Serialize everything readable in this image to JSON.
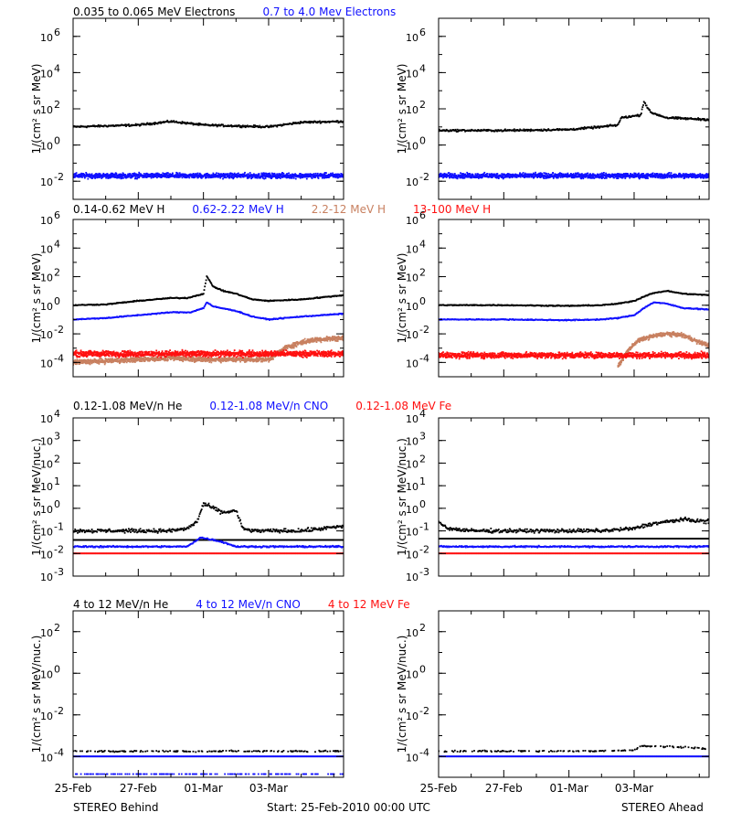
{
  "footer": {
    "left": "STEREO Behind",
    "center": "Start: 25-Feb-2010 00:00 UTC",
    "right": "STEREO Ahead"
  },
  "x_ticks": [
    "25-Feb",
    "27-Feb",
    "01-Mar",
    "03-Mar"
  ],
  "x_tick_days": [
    0,
    2,
    4,
    6
  ],
  "x_range_days": [
    0,
    8.3
  ],
  "colors": {
    "black": "#000000",
    "blue": "#1010ff",
    "tan": "#c88060",
    "red": "#ff1010"
  },
  "chart_data": [
    {
      "row": 0,
      "col": 0,
      "type": "scatter",
      "ylabel": "1/(cm² s sr MeV)",
      "yscale": "log",
      "ylim_exp": [
        -3,
        7
      ],
      "yticks": [
        {
          "label": "10",
          "exp": "-2"
        },
        {
          "label": "10",
          "exp": "0"
        },
        {
          "label": "10",
          "exp": "2"
        },
        {
          "label": "10",
          "exp": "4"
        },
        {
          "label": "10",
          "exp": "6"
        }
      ],
      "legend": [
        {
          "text": "0.035 to 0.065 MeV Electrons",
          "color": "#000000"
        },
        {
          "text": "0.7 to 4.0 Mev Electrons",
          "color": "#1010ff"
        }
      ],
      "series": [
        {
          "color": "#000000",
          "jitter": 0.08,
          "x": [
            0,
            1,
            2,
            3,
            4,
            5,
            6,
            7,
            8.3
          ],
          "logy": [
            1.0,
            1.05,
            1.1,
            1.3,
            1.1,
            1.05,
            1.0,
            1.25,
            1.3
          ]
        },
        {
          "color": "#1010ff",
          "jitter": 0.2,
          "x": [
            0,
            8.3
          ],
          "logy": [
            -1.7,
            -1.7
          ]
        }
      ]
    },
    {
      "row": 0,
      "col": 1,
      "type": "scatter",
      "ylabel": "1/(cm² s sr MeV)",
      "yscale": "log",
      "ylim_exp": [
        -3,
        7
      ],
      "yticks": [
        {
          "label": "10",
          "exp": "-2"
        },
        {
          "label": "10",
          "exp": "0"
        },
        {
          "label": "10",
          "exp": "2"
        },
        {
          "label": "10",
          "exp": "4"
        },
        {
          "label": "10",
          "exp": "6"
        }
      ],
      "legend": [],
      "series": [
        {
          "color": "#000000",
          "jitter": 0.08,
          "x": [
            0,
            2,
            4,
            5,
            5.5,
            5.6,
            6.0,
            6.2,
            6.3,
            6.5,
            7,
            8.3
          ],
          "logy": [
            0.8,
            0.8,
            0.85,
            1.0,
            1.1,
            1.5,
            1.6,
            1.65,
            2.4,
            1.8,
            1.5,
            1.4
          ]
        },
        {
          "color": "#1010ff",
          "jitter": 0.2,
          "x": [
            0,
            8.3
          ],
          "logy": [
            -1.7,
            -1.7
          ]
        }
      ]
    },
    {
      "row": 1,
      "col": 0,
      "type": "scatter",
      "ylabel": "1/(cm² s sr MeV)",
      "yscale": "log",
      "ylim_exp": [
        -5,
        6
      ],
      "yticks": [
        {
          "label": "10",
          "exp": "-4"
        },
        {
          "label": "10",
          "exp": "-2"
        },
        {
          "label": "10",
          "exp": "0"
        },
        {
          "label": "10",
          "exp": "2"
        },
        {
          "label": "10",
          "exp": "4"
        },
        {
          "label": "10",
          "exp": "6"
        }
      ],
      "legend": [
        {
          "text": "0.14-0.62 MeV H",
          "color": "#000000"
        },
        {
          "text": "0.62-2.22 MeV H",
          "color": "#1010ff"
        },
        {
          "text": "2.2-12 MeV H",
          "color": "#c88060"
        },
        {
          "text": "13-100 MeV H",
          "color": "#ff1010"
        }
      ],
      "series": [
        {
          "color": "#000000",
          "jitter": 0.05,
          "x": [
            0,
            1,
            2,
            3,
            3.5,
            4.0,
            4.1,
            4.3,
            4.6,
            5,
            5.5,
            6,
            7,
            8.3
          ],
          "logy": [
            0.0,
            0.05,
            0.3,
            0.5,
            0.5,
            0.8,
            2.0,
            1.3,
            1.0,
            0.8,
            0.4,
            0.3,
            0.4,
            0.7
          ]
        },
        {
          "color": "#1010ff",
          "jitter": 0.05,
          "x": [
            0,
            1,
            2,
            3,
            3.6,
            4.0,
            4.1,
            4.3,
            5,
            5.5,
            6,
            7,
            8.3
          ],
          "logy": [
            -1.0,
            -0.9,
            -0.7,
            -0.5,
            -0.5,
            -0.2,
            0.2,
            -0.1,
            -0.4,
            -0.8,
            -1.0,
            -0.8,
            -0.6
          ]
        },
        {
          "color": "#c88060",
          "jitter": 0.25,
          "x": [
            0,
            2,
            3,
            4,
            5,
            5.5,
            6,
            6.5,
            7,
            7.5,
            8.3
          ],
          "logy": [
            -4.0,
            -3.8,
            -3.7,
            -3.8,
            -3.8,
            -3.8,
            -3.8,
            -3.0,
            -2.6,
            -2.4,
            -2.3
          ]
        },
        {
          "color": "#ff1010",
          "jitter": 0.3,
          "x": [
            0,
            8.3
          ],
          "logy": [
            -3.4,
            -3.4
          ]
        }
      ]
    },
    {
      "row": 1,
      "col": 1,
      "type": "scatter",
      "ylabel": "1/(cm² s sr MeV)",
      "yscale": "log",
      "ylim_exp": [
        -5,
        6
      ],
      "yticks": [
        {
          "label": "10",
          "exp": "-4"
        },
        {
          "label": "10",
          "exp": "-2"
        },
        {
          "label": "10",
          "exp": "0"
        },
        {
          "label": "10",
          "exp": "2"
        },
        {
          "label": "10",
          "exp": "4"
        },
        {
          "label": "10",
          "exp": "6"
        }
      ],
      "legend": [],
      "series": [
        {
          "color": "#000000",
          "jitter": 0.05,
          "x": [
            0,
            2,
            4,
            5,
            5.5,
            6,
            6.5,
            7,
            7.5,
            8.3
          ],
          "logy": [
            0.0,
            0.0,
            -0.05,
            0.0,
            0.1,
            0.3,
            0.8,
            1.0,
            0.8,
            0.7
          ]
        },
        {
          "color": "#1010ff",
          "jitter": 0.05,
          "x": [
            0,
            2,
            4,
            5,
            5.5,
            6,
            6.3,
            6.6,
            7,
            7.5,
            8.3
          ],
          "logy": [
            -1.0,
            -1.0,
            -1.05,
            -1.0,
            -0.9,
            -0.7,
            -0.2,
            0.2,
            0.1,
            -0.2,
            -0.3
          ]
        },
        {
          "color": "#c88060",
          "jitter": 0.2,
          "x": [
            5.5,
            5.8,
            6.1,
            6.5,
            7.0,
            7.5,
            8.0,
            8.3
          ],
          "logy": [
            -4.3,
            -3.2,
            -2.5,
            -2.2,
            -2.0,
            -2.1,
            -2.6,
            -2.8
          ]
        },
        {
          "color": "#ff1010",
          "jitter": 0.3,
          "x": [
            0,
            8.3
          ],
          "logy": [
            -3.5,
            -3.5
          ]
        }
      ]
    },
    {
      "row": 2,
      "col": 0,
      "type": "scatter",
      "ylabel": "1/(cm² s sr MeV/nuc.)",
      "yscale": "log",
      "ylim_exp": [
        -3,
        4
      ],
      "yticks": [
        {
          "label": "10",
          "exp": "-3"
        },
        {
          "label": "10",
          "exp": "-2"
        },
        {
          "label": "10",
          "exp": "-1"
        },
        {
          "label": "10",
          "exp": "0"
        },
        {
          "label": "10",
          "exp": "1"
        },
        {
          "label": "10",
          "exp": "2"
        },
        {
          "label": "10",
          "exp": "3"
        },
        {
          "label": "10",
          "exp": "4"
        }
      ],
      "legend": [
        {
          "text": "0.12-1.08 MeV/n He",
          "color": "#000000"
        },
        {
          "text": "0.12-1.08 MeV/n CNO",
          "color": "#1010ff"
        },
        {
          "text": "0.12-1.08 MeV Fe",
          "color": "#ff1010"
        }
      ],
      "series": [
        {
          "color": "#000000",
          "jitter": 0.12,
          "x": [
            0,
            1,
            2,
            3,
            3.5,
            3.8,
            4.0,
            4.3,
            4.6,
            5.0,
            5.2,
            5.5,
            6,
            7,
            8.3
          ],
          "logy": [
            -1.0,
            -1.0,
            -1.0,
            -1.0,
            -0.9,
            -0.6,
            0.2,
            0.0,
            -0.2,
            -0.1,
            -0.9,
            -1.0,
            -1.0,
            -1.0,
            -0.8
          ]
        },
        {
          "color": "#000000",
          "jitter": 0.0,
          "x": [
            0,
            8.3
          ],
          "logy": [
            -1.4,
            -1.4
          ]
        },
        {
          "color": "#1010ff",
          "jitter": 0.05,
          "x": [
            0,
            3.5,
            3.9,
            4.3,
            4.6,
            5.0,
            8.3
          ],
          "logy": [
            -1.7,
            -1.7,
            -1.3,
            -1.4,
            -1.5,
            -1.7,
            -1.7
          ]
        },
        {
          "color": "#ff1010",
          "jitter": 0.0,
          "x": [
            0,
            8.3
          ],
          "logy": [
            -2.0,
            -2.0
          ]
        }
      ]
    },
    {
      "row": 2,
      "col": 1,
      "type": "scatter",
      "ylabel": "1/(cm² s sr MeV/nuc.)",
      "yscale": "log",
      "ylim_exp": [
        -3,
        4
      ],
      "yticks": [
        {
          "label": "10",
          "exp": "-3"
        },
        {
          "label": "10",
          "exp": "-2"
        },
        {
          "label": "10",
          "exp": "-1"
        },
        {
          "label": "10",
          "exp": "0"
        },
        {
          "label": "10",
          "exp": "1"
        },
        {
          "label": "10",
          "exp": "2"
        },
        {
          "label": "10",
          "exp": "3"
        },
        {
          "label": "10",
          "exp": "4"
        }
      ],
      "legend": [],
      "series": [
        {
          "color": "#000000",
          "jitter": 0.12,
          "x": [
            0,
            0.3,
            1,
            2,
            3,
            4,
            5,
            6,
            6.5,
            7,
            7.5,
            8.3
          ],
          "logy": [
            -0.6,
            -0.9,
            -1.0,
            -1.0,
            -1.0,
            -1.0,
            -1.0,
            -0.9,
            -0.7,
            -0.6,
            -0.5,
            -0.6
          ]
        },
        {
          "color": "#000000",
          "jitter": 0.0,
          "x": [
            0,
            8.3
          ],
          "logy": [
            -1.35,
            -1.35
          ]
        },
        {
          "color": "#1010ff",
          "jitter": 0.05,
          "x": [
            0,
            8.3
          ],
          "logy": [
            -1.7,
            -1.7
          ]
        },
        {
          "color": "#ff1010",
          "jitter": 0.0,
          "x": [
            0,
            8.3
          ],
          "logy": [
            -2.0,
            -2.0
          ]
        }
      ]
    },
    {
      "row": 3,
      "col": 0,
      "type": "scatter",
      "ylabel": "1/(cm² s sr MeV/nuc.)",
      "yscale": "log",
      "ylim_exp": [
        -5,
        3
      ],
      "yticks": [
        {
          "label": "10",
          "exp": "-4"
        },
        {
          "label": "10",
          "exp": "-2"
        },
        {
          "label": "10",
          "exp": "0"
        },
        {
          "label": "10",
          "exp": "2"
        }
      ],
      "legend": [
        {
          "text": "4 to 12 MeV/n He",
          "color": "#000000"
        },
        {
          "text": "4 to 12 MeV/n CNO",
          "color": "#1010ff"
        },
        {
          "text": "4 to 12 MeV Fe",
          "color": "#ff1010"
        }
      ],
      "series": [
        {
          "color": "#000000",
          "jitter": 0.05,
          "sparse": 0.35,
          "x": [
            0,
            8.3
          ],
          "logy": [
            -3.75,
            -3.75
          ]
        },
        {
          "color": "#1010ff",
          "jitter": 0.0,
          "x": [
            0,
            8.3
          ],
          "logy": [
            -4.0,
            -4.0
          ]
        },
        {
          "color": "#1010ff",
          "jitter": 0.0,
          "sparse": 0.3,
          "x": [
            0,
            8.3
          ],
          "logy": [
            -4.85,
            -4.85
          ]
        }
      ]
    },
    {
      "row": 3,
      "col": 1,
      "type": "scatter",
      "ylabel": "1/(cm² s sr MeV/nuc.)",
      "yscale": "log",
      "ylim_exp": [
        -5,
        3
      ],
      "yticks": [
        {
          "label": "10",
          "exp": "-4"
        },
        {
          "label": "10",
          "exp": "-2"
        },
        {
          "label": "10",
          "exp": "0"
        },
        {
          "label": "10",
          "exp": "2"
        }
      ],
      "legend": [],
      "series": [
        {
          "color": "#000000",
          "jitter": 0.05,
          "sparse": 0.35,
          "x": [
            0,
            4.5,
            4.6,
            6.0,
            6.2,
            7.5,
            8.3
          ],
          "logy": [
            -3.75,
            -3.75,
            -3.75,
            -3.7,
            -3.5,
            -3.55,
            -3.65
          ]
        },
        {
          "color": "#1010ff",
          "jitter": 0.0,
          "x": [
            0,
            8.3
          ],
          "logy": [
            -4.0,
            -4.0
          ]
        }
      ]
    }
  ]
}
